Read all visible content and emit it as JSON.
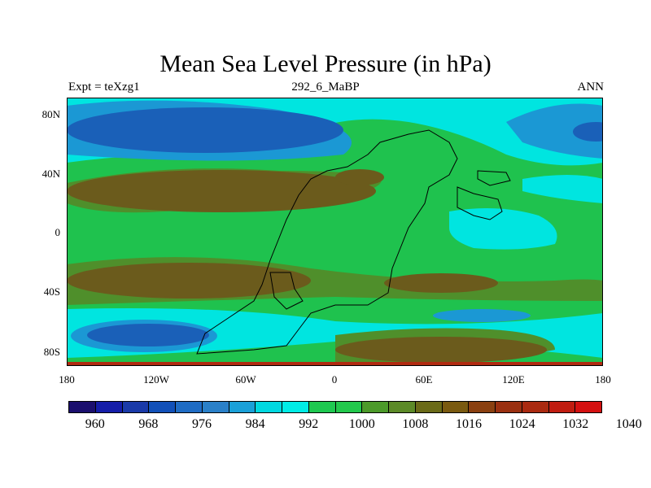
{
  "title": "Mean Sea Level Pressure (in hPa)",
  "subtitle": {
    "left": "Expt = teXzg1",
    "center": "292_6_MaBP",
    "right": "ANN"
  },
  "map": {
    "projection": "cylindrical-equidistant",
    "lon_range": [
      -180,
      180
    ],
    "lat_range": [
      -90,
      90
    ],
    "lon_ticks": [
      {
        "value": -180,
        "label": "180"
      },
      {
        "value": -120,
        "label": "120W"
      },
      {
        "value": -60,
        "label": "60W"
      },
      {
        "value": 0,
        "label": "0"
      },
      {
        "value": 60,
        "label": "60E"
      },
      {
        "value": 120,
        "label": "120E"
      },
      {
        "value": 180,
        "label": "180"
      }
    ],
    "lat_ticks": [
      {
        "value": 80,
        "label": "80N"
      },
      {
        "value": 40,
        "label": "40N"
      },
      {
        "value": 0,
        "label": "0"
      },
      {
        "value": -40,
        "label": "40S"
      },
      {
        "value": -80,
        "label": "80S"
      }
    ]
  },
  "colorbar": {
    "colors": [
      "#1b0f6e",
      "#151da8",
      "#1a3aa8",
      "#1150b8",
      "#1f6cc4",
      "#2a80c8",
      "#1aa0d8",
      "#00d8e0",
      "#00ece6",
      "#1ec850",
      "#22c84c",
      "#4c9a2a",
      "#5c8a28",
      "#6a6a18",
      "#7a5a10",
      "#8a4010",
      "#9a3010",
      "#aa2a10",
      "#c01c10",
      "#d41010"
    ],
    "labels": [
      "960",
      "968",
      "976",
      "984",
      "992",
      "1000",
      "1008",
      "1016",
      "1024",
      "1032",
      "1040"
    ],
    "levels": [
      960,
      968,
      976,
      984,
      992,
      1000,
      1008,
      1016,
      1024,
      1032,
      1040
    ]
  },
  "contour_colors": {
    "deep_low": "#1a60b8",
    "low": "#1b98d4",
    "cyan": "#00e5e0",
    "green": "#1fc24e",
    "olive": "#4f8f2b",
    "high": "#6b5b1c",
    "polar": "#b02a10"
  }
}
